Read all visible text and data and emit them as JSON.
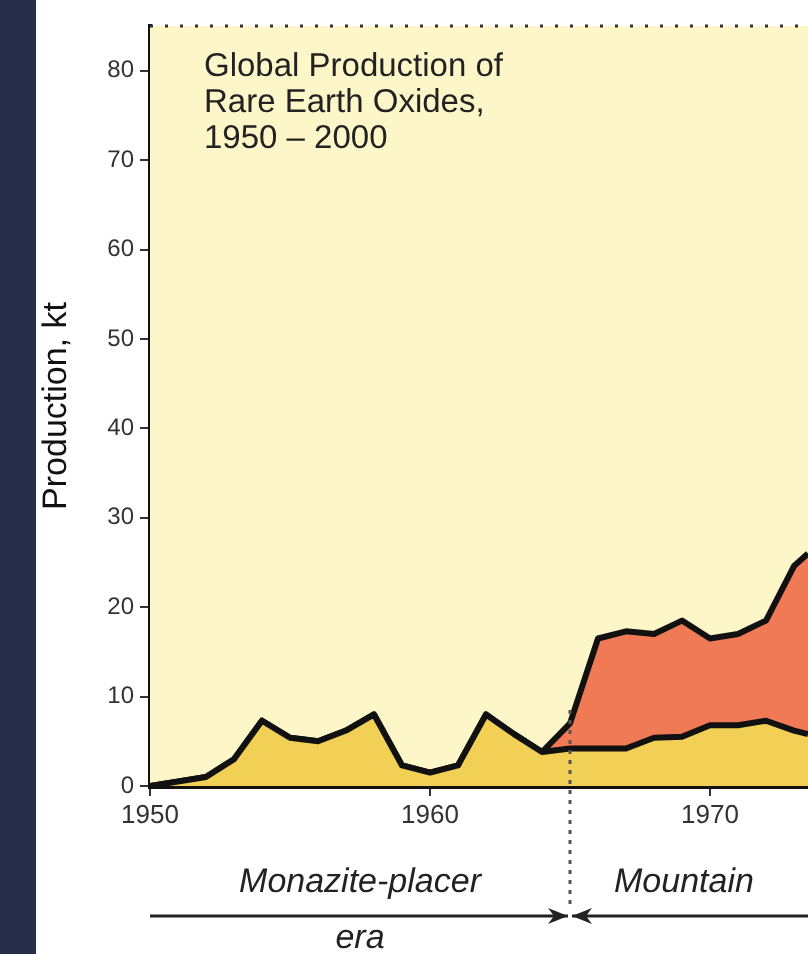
{
  "chart_data": {
    "type": "area",
    "stacked": true,
    "title": "Global Production of\nRare Earth Oxides,\n1950 – 2000",
    "ylabel": "Production, kt",
    "xlim": [
      1950,
      1973.5
    ],
    "xticks": [
      1950,
      1960,
      1970
    ],
    "ylim": [
      0,
      85
    ],
    "yticks": [
      0,
      10,
      20,
      30,
      40,
      50,
      60,
      70,
      80
    ],
    "x": [
      1950,
      1952,
      1953,
      1954,
      1955,
      1956,
      1957,
      1958,
      1959,
      1960,
      1961,
      1962,
      1963,
      1964,
      1965,
      1966,
      1967,
      1968,
      1969,
      1970,
      1971,
      1972,
      1973,
      1973.5
    ],
    "series": [
      {
        "color": "#f2cf55",
        "values": [
          0,
          1,
          3,
          7.3,
          5.4,
          5,
          6.2,
          8,
          2.3,
          1.5,
          2.3,
          8,
          5.8,
          3.8,
          4.2,
          4.2,
          4.2,
          5.4,
          5.5,
          6.8,
          6.8,
          7.3,
          6.2,
          5.8
        ]
      },
      {
        "color": "#f07a55",
        "values": [
          0,
          0,
          0,
          0,
          0,
          0,
          0,
          0,
          0,
          0,
          0,
          0,
          0,
          0,
          2.8,
          12.3,
          13.1,
          11.6,
          13,
          9.7,
          10.2,
          11.2,
          18.4,
          20.2
        ]
      }
    ],
    "ref_lines": [
      {
        "axis": "x",
        "value": 1965,
        "line_style": "dotted",
        "color": "#555555"
      }
    ],
    "annotations": [
      "Monazite-placer\nera",
      "Mountain"
    ]
  }
}
